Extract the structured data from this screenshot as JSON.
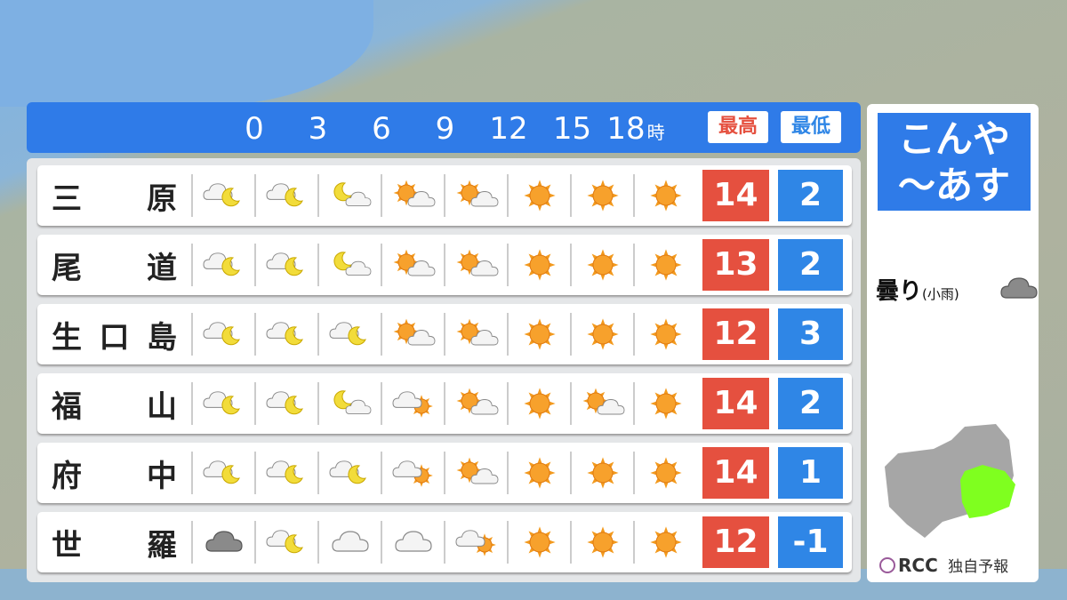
{
  "header": {
    "hours": [
      "0",
      "3",
      "6",
      "9",
      "12",
      "15",
      "18"
    ],
    "hour_unit": "時",
    "max_label": "最高",
    "min_label": "最低",
    "temp_unit": "℃",
    "max_color": "#e5503f",
    "min_color": "#2f86e6"
  },
  "rows": [
    {
      "name": [
        "三",
        "原"
      ],
      "icons": [
        "cloud-moon",
        "cloud-moon",
        "moon-cloud",
        "sun-cloud",
        "sun-cloud",
        "sun",
        "sun",
        "sun"
      ],
      "max": "14",
      "min": "2"
    },
    {
      "name": [
        "尾",
        "道"
      ],
      "icons": [
        "cloud-moon",
        "cloud-moon",
        "moon-cloud",
        "sun-cloud",
        "sun-cloud",
        "sun",
        "sun",
        "sun"
      ],
      "max": "13",
      "min": "2"
    },
    {
      "name": [
        "生",
        "口",
        "島"
      ],
      "icons": [
        "cloud-moon",
        "cloud-moon",
        "cloud-moon",
        "sun-cloud",
        "sun-cloud",
        "sun",
        "sun",
        "sun"
      ],
      "max": "12",
      "min": "3"
    },
    {
      "name": [
        "福",
        "山"
      ],
      "icons": [
        "cloud-moon",
        "cloud-moon",
        "moon-cloud",
        "cloud-sun",
        "sun-cloud",
        "sun",
        "sun-cloud",
        "sun"
      ],
      "max": "14",
      "min": "2"
    },
    {
      "name": [
        "府",
        "中"
      ],
      "icons": [
        "cloud-moon",
        "cloud-moon",
        "cloud-moon",
        "cloud-sun",
        "sun-cloud",
        "sun",
        "sun",
        "sun"
      ],
      "max": "14",
      "min": "1"
    },
    {
      "name": [
        "世",
        "羅"
      ],
      "icons": [
        "dark-cloud",
        "cloud-moon",
        "cloud",
        "cloud",
        "cloud-sun",
        "sun",
        "sun",
        "sun"
      ],
      "max": "12",
      "min": "-1"
    }
  ],
  "side": {
    "title_line1": "こんや",
    "title_line2": "〜あす",
    "legend_main": "曇り",
    "legend_sub": "(小雨)",
    "legend_icon": "dark-cloud",
    "map_highlight_color": "#7fff1f",
    "logo": "RCC",
    "logo_sub": "独自予報"
  }
}
